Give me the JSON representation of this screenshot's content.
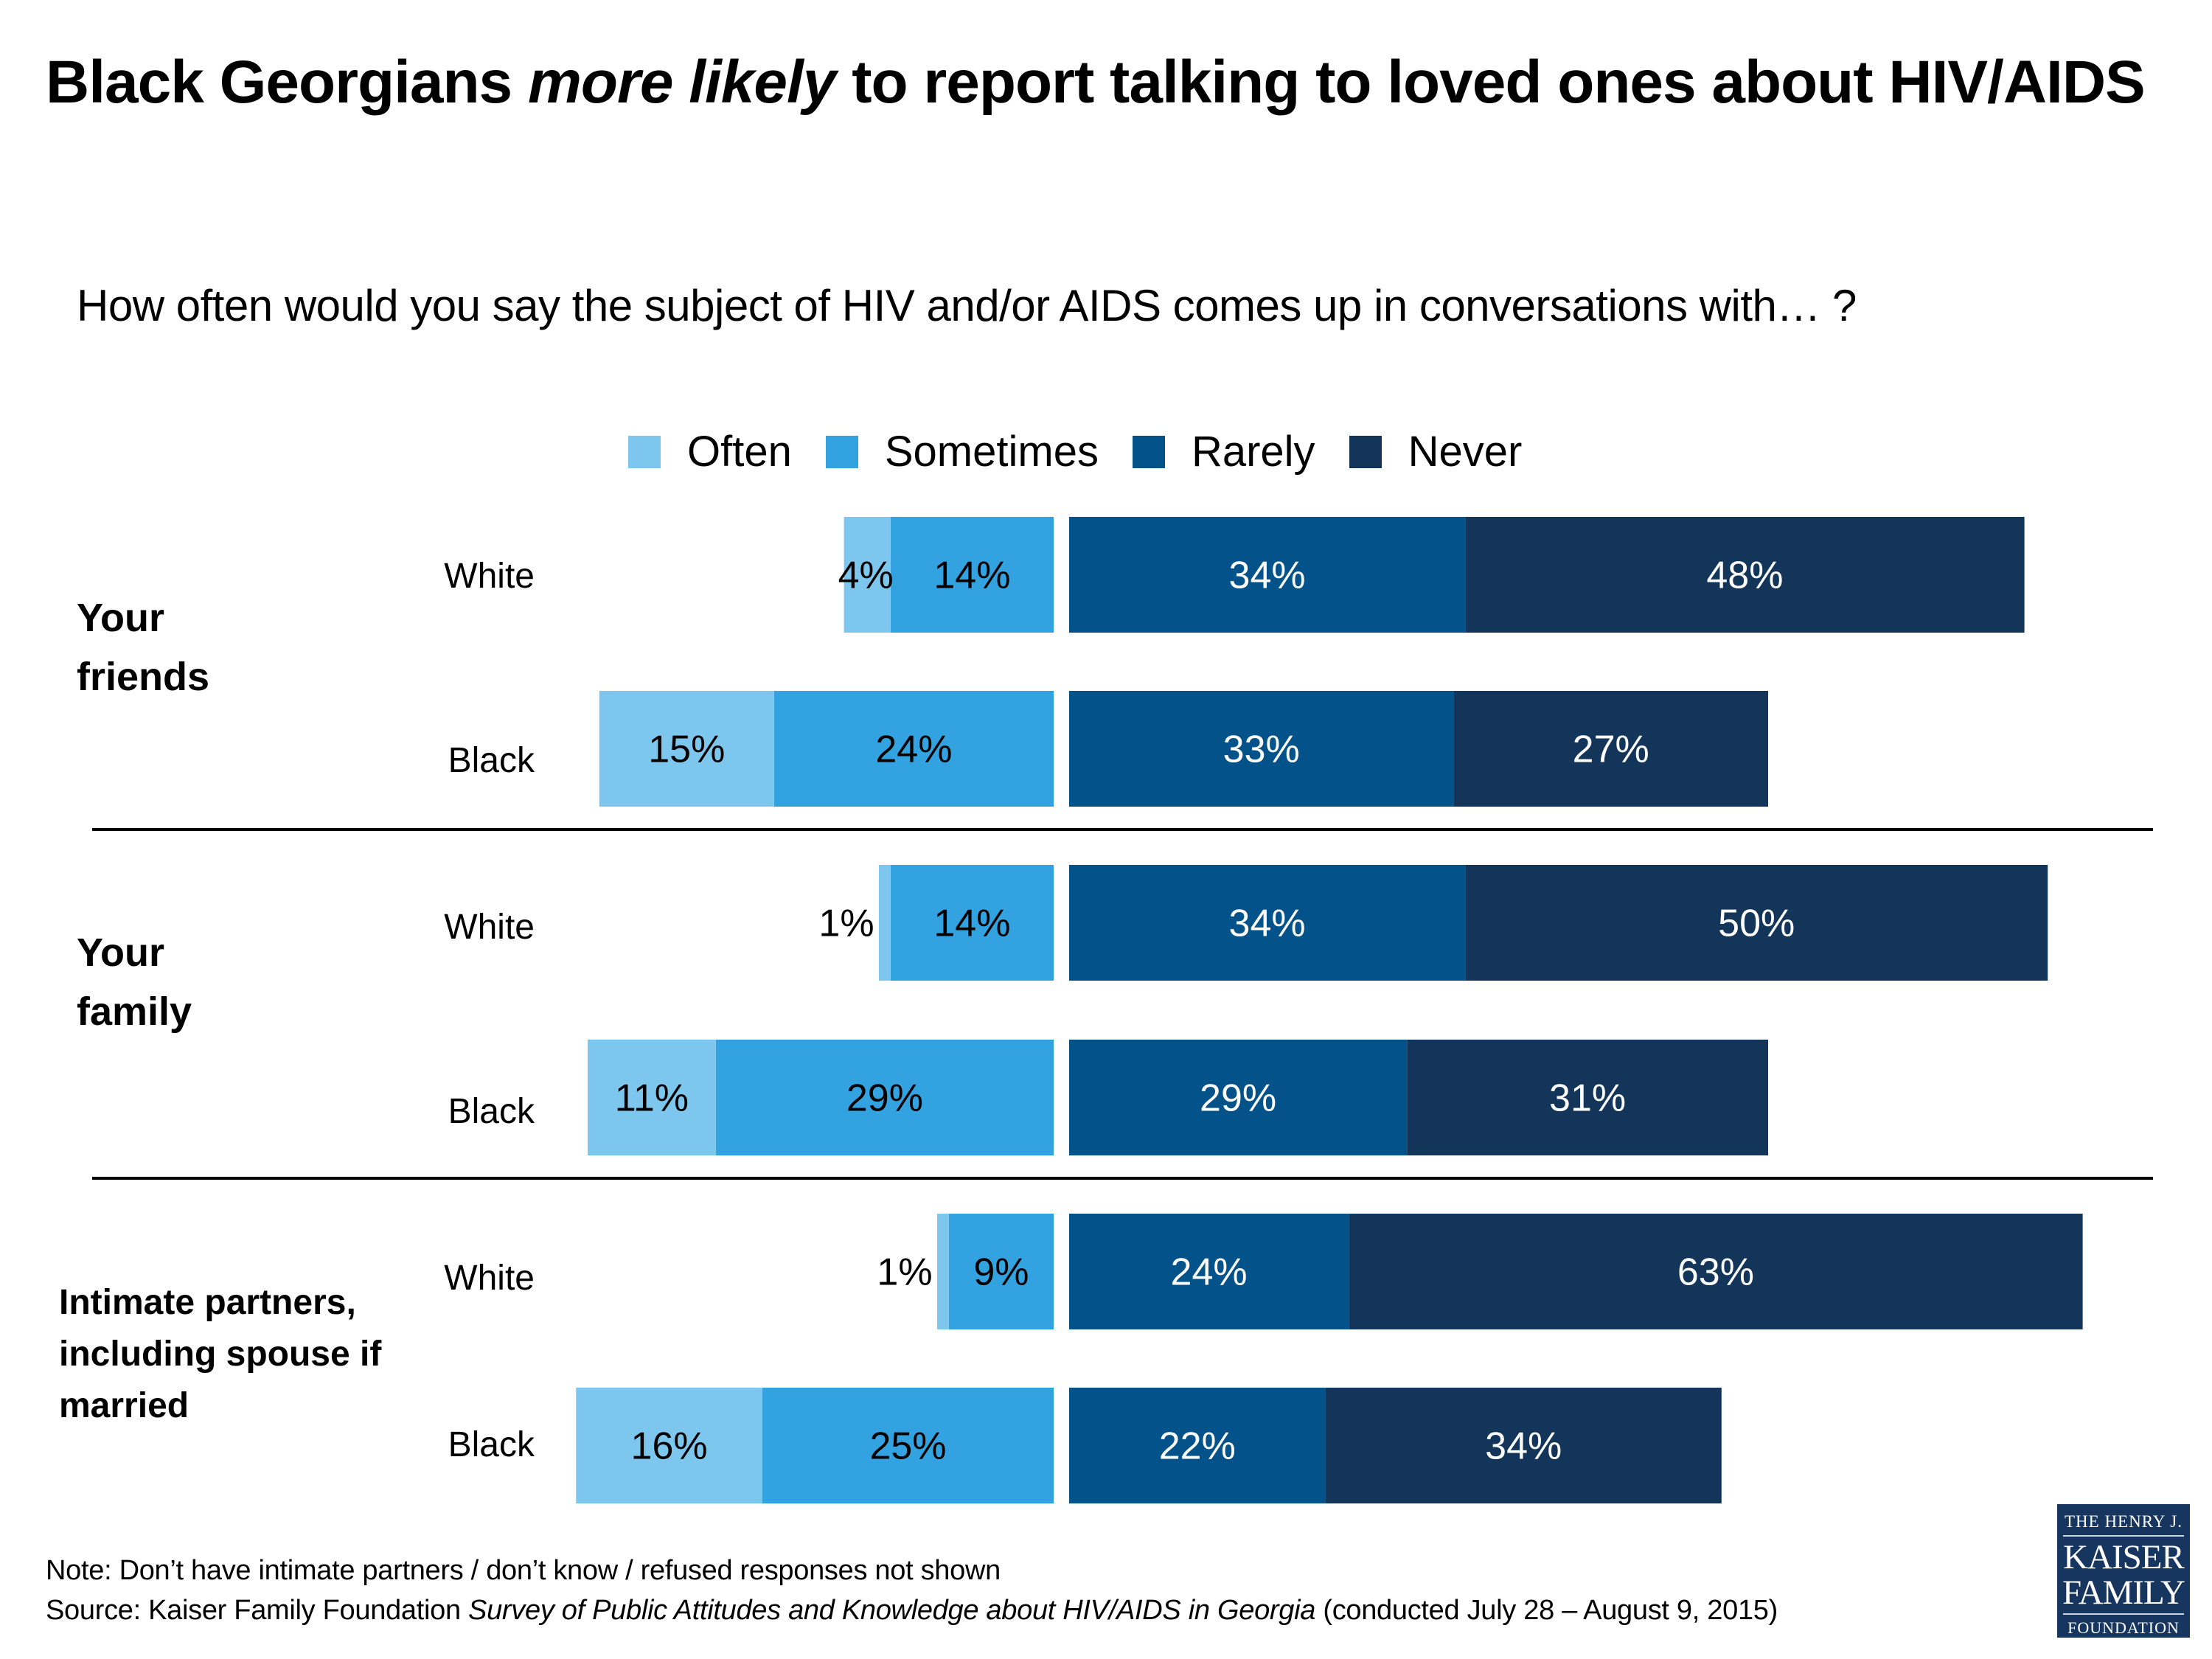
{
  "title": {
    "part1": "Black Georgians ",
    "emphasis": "more likely",
    "part2": " to report talking to loved ones about HIV/AIDS"
  },
  "subtitle": "How often would you say the subject of HIV and/or AIDS comes up in conversations with… ?",
  "footer": {
    "note": "Note: Don’t have intimate partners / don’t know / refused responses not shown",
    "source_prefix": "Source: Kaiser Family Foundation ",
    "source_title": "Survey of Public Attitudes and Knowledge about HIV/AIDS in Georgia",
    "source_suffix": " (conducted July 28 – August 9, 2015)"
  },
  "logo": {
    "line1": "THE HENRY J.",
    "line2": "KAISER",
    "line3": "FAMILY",
    "line4": "FOUNDATION"
  },
  "chart_data": {
    "type": "bar",
    "orientation": "horizontal-diverging-stacked",
    "title": "Black Georgians more likely to report talking to loved ones about HIV/AIDS",
    "subtitle": "How often would you say the subject of HIV and/or AIDS comes up in conversations with… ?",
    "legend": {
      "position": "top-center",
      "entries": [
        {
          "name": "Often",
          "color": "#7DC7EE"
        },
        {
          "name": "Sometimes",
          "color": "#33A2E0"
        },
        {
          "name": "Rarely",
          "color": "#03528A"
        },
        {
          "name": "Never",
          "color": "#14355A"
        }
      ]
    },
    "left_side_series": [
      "Often",
      "Sometimes"
    ],
    "right_side_series": [
      "Rarely",
      "Never"
    ],
    "units": "%",
    "groups": [
      {
        "label": "Your friends",
        "rows": [
          {
            "label": "White",
            "values": {
              "Often": 4,
              "Sometimes": 14,
              "Rarely": 34,
              "Never": 48
            }
          },
          {
            "label": "Black",
            "values": {
              "Often": 15,
              "Sometimes": 24,
              "Rarely": 33,
              "Never": 27
            }
          }
        ]
      },
      {
        "label": "Your family",
        "rows": [
          {
            "label": "White",
            "values": {
              "Often": 1,
              "Sometimes": 14,
              "Rarely": 34,
              "Never": 50
            }
          },
          {
            "label": "Black",
            "values": {
              "Often": 11,
              "Sometimes": 29,
              "Rarely": 29,
              "Never": 31
            }
          }
        ]
      },
      {
        "label": "Intimate partners, including spouse if married",
        "rows": [
          {
            "label": "White",
            "values": {
              "Often": 1,
              "Sometimes": 9,
              "Rarely": 24,
              "Never": 63
            }
          },
          {
            "label": "Black",
            "values": {
              "Often": 16,
              "Sometimes": 25,
              "Rarely": 22,
              "Never": 34
            }
          }
        ]
      }
    ]
  }
}
